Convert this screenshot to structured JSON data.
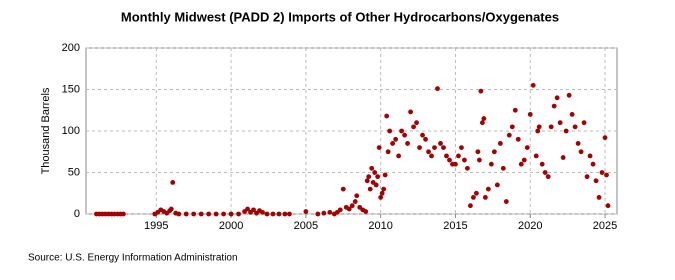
{
  "chart_data": {
    "type": "scatter",
    "title": "Monthly Midwest (PADD 2) Imports of Other Hydrocarbons/Oxygenates",
    "y_label": "Thousand Barrels",
    "source": "Source: U.S. Energy Information Administration",
    "color": "#a50000",
    "grid": true,
    "xlim": [
      1990.3,
      2025.8
    ],
    "xticks": [
      1995,
      2000,
      2005,
      2010,
      2015,
      2020,
      2025
    ],
    "ylim": [
      0,
      200
    ],
    "yticks": [
      0,
      50,
      100,
      150,
      200
    ],
    "x": [
      1991.0,
      1991.2,
      1991.4,
      1991.6,
      1991.8,
      1992.0,
      1992.2,
      1992.4,
      1992.6,
      1992.8,
      1994.9,
      1995.1,
      1995.3,
      1995.5,
      1995.7,
      1995.9,
      1996.0,
      1996.1,
      1996.3,
      1996.5,
      1997.0,
      1997.5,
      1998.0,
      1998.5,
      1999.0,
      1999.5,
      2000.0,
      2000.5,
      2000.9,
      2001.1,
      2001.3,
      2001.5,
      2001.7,
      2001.9,
      2002.1,
      2002.4,
      2002.8,
      2003.2,
      2003.6,
      2003.9,
      2005.0,
      2005.8,
      2006.2,
      2006.6,
      2006.9,
      2007.1,
      2007.3,
      2007.5,
      2007.7,
      2007.9,
      2008.1,
      2008.3,
      2008.4,
      2008.6,
      2008.8,
      2009.0,
      2009.1,
      2009.2,
      2009.3,
      2009.4,
      2009.5,
      2009.6,
      2009.7,
      2009.8,
      2009.9,
      2010.0,
      2010.1,
      2010.2,
      2010.3,
      2010.4,
      2010.5,
      2010.6,
      2010.8,
      2011.0,
      2011.2,
      2011.4,
      2011.6,
      2011.8,
      2012.0,
      2012.2,
      2012.4,
      2012.6,
      2012.8,
      2013.0,
      2013.2,
      2013.4,
      2013.6,
      2013.8,
      2014.0,
      2014.2,
      2014.4,
      2014.6,
      2014.8,
      2015.0,
      2015.2,
      2015.4,
      2015.6,
      2015.8,
      2016.0,
      2016.2,
      2016.4,
      2016.5,
      2016.6,
      2016.7,
      2016.8,
      2016.9,
      2017.0,
      2017.2,
      2017.4,
      2017.6,
      2017.8,
      2018.0,
      2018.2,
      2018.4,
      2018.6,
      2018.8,
      2019.0,
      2019.2,
      2019.4,
      2019.6,
      2019.8,
      2020.0,
      2020.2,
      2020.4,
      2020.5,
      2020.6,
      2020.8,
      2021.0,
      2021.2,
      2021.4,
      2021.6,
      2021.8,
      2022.0,
      2022.2,
      2022.4,
      2022.6,
      2022.8,
      2023.0,
      2023.2,
      2023.4,
      2023.6,
      2023.8,
      2024.0,
      2024.2,
      2024.4,
      2024.6,
      2024.8,
      2025.0,
      2025.1,
      2025.2
    ],
    "values": [
      0,
      0,
      0,
      0,
      0,
      0,
      0,
      0,
      0,
      0,
      0,
      2,
      5,
      3,
      1,
      4,
      6,
      38,
      1,
      0,
      0,
      0,
      0,
      0,
      0,
      0,
      0,
      0,
      3,
      6,
      2,
      5,
      1,
      4,
      2,
      0,
      0,
      0,
      0,
      0,
      3,
      0,
      1,
      2,
      0,
      2,
      5,
      30,
      8,
      6,
      10,
      15,
      22,
      8,
      5,
      3,
      40,
      45,
      30,
      55,
      38,
      50,
      35,
      45,
      80,
      20,
      25,
      30,
      47,
      118,
      75,
      100,
      85,
      90,
      70,
      100,
      95,
      85,
      123,
      105,
      110,
      80,
      95,
      90,
      75,
      70,
      80,
      151,
      85,
      80,
      70,
      65,
      60,
      60,
      70,
      80,
      65,
      55,
      10,
      20,
      25,
      75,
      65,
      148,
      110,
      115,
      20,
      30,
      60,
      75,
      35,
      85,
      55,
      15,
      95,
      105,
      125,
      90,
      60,
      65,
      80,
      120,
      155,
      70,
      100,
      105,
      60,
      50,
      45,
      105,
      130,
      140,
      110,
      68,
      100,
      143,
      120,
      105,
      85,
      75,
      110,
      45,
      70,
      60,
      40,
      20,
      50,
      92,
      47,
      10
    ]
  }
}
